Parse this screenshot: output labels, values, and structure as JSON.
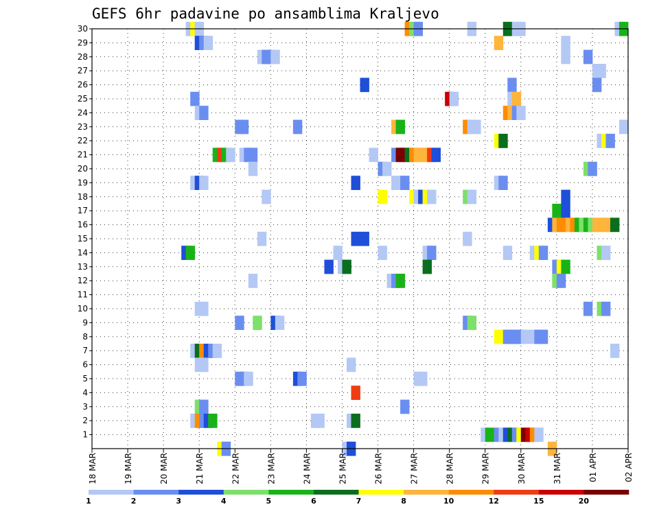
{
  "chart_data": {
    "type": "heatmap",
    "title": "GEFS 6hr padavine po ansamblima Kraljevo",
    "xlabel": "",
    "ylabel": "",
    "x_ticks": [
      "18 MAR",
      "19 MAR",
      "20 MAR",
      "21 MAR",
      "22 MAR",
      "23 MAR",
      "24 MAR",
      "25 MAR",
      "26 MAR",
      "27 MAR",
      "28 MAR",
      "29 MAR",
      "30 MAR",
      "31 MAR",
      "01 APR",
      "02 APR"
    ],
    "y_ticks": [
      "1",
      "2",
      "3",
      "4",
      "5",
      "6",
      "7",
      "8",
      "9",
      "10",
      "11",
      "12",
      "13",
      "14",
      "15",
      "16",
      "17",
      "18",
      "19",
      "20",
      "21",
      "22",
      "23",
      "24",
      "25",
      "26",
      "27",
      "28",
      "29",
      "30"
    ],
    "x_range_days": [
      0,
      15
    ],
    "x_reference_date": "18 MAR",
    "y_range": [
      0,
      30
    ],
    "grid": true,
    "colorbar": {
      "levels": [
        "1",
        "2",
        "3",
        "4",
        "5",
        "6",
        "7",
        "8",
        "10",
        "12",
        "15",
        "20"
      ],
      "colors": [
        "#b4c8f5",
        "#6a8ef0",
        "#1f4fd8",
        "#7ce06a",
        "#19b319",
        "#0a6e1e",
        "#ffff00",
        "#ffb43c",
        "#ff8c00",
        "#f03c14",
        "#c80000",
        "#780000"
      ],
      "level_index_for_class": [
        0,
        0,
        1,
        2,
        3,
        4,
        5,
        6,
        7,
        8,
        9,
        10,
        11
      ]
    },
    "cells": [
      [
        30,
        2.75,
        0
      ],
      [
        30,
        2.875,
        6
      ],
      [
        30,
        3.0,
        0
      ],
      [
        30,
        8.875,
        8
      ],
      [
        30,
        9.0,
        3
      ],
      [
        30,
        9.125,
        1
      ],
      [
        30,
        10.625,
        0
      ],
      [
        30,
        11.625,
        5
      ],
      [
        30,
        11.875,
        0
      ],
      [
        30,
        12.0,
        0
      ],
      [
        30,
        14.75,
        0
      ],
      [
        30,
        14.875,
        4
      ],
      [
        29,
        3.0,
        2
      ],
      [
        29,
        3.125,
        1
      ],
      [
        29,
        3.25,
        0
      ],
      [
        29,
        11.375,
        7
      ],
      [
        29,
        13.25,
        0
      ],
      [
        28,
        4.75,
        0
      ],
      [
        28,
        4.875,
        1
      ],
      [
        28,
        5.0,
        1
      ],
      [
        28,
        5.125,
        0
      ],
      [
        28,
        13.25,
        0
      ],
      [
        28,
        13.875,
        1
      ],
      [
        27,
        14.125,
        0
      ],
      [
        27,
        14.25,
        0
      ],
      [
        26,
        7.625,
        2
      ],
      [
        26,
        11.75,
        1
      ],
      [
        26,
        14.125,
        1
      ],
      [
        25,
        2.875,
        1
      ],
      [
        25,
        10.0,
        10
      ],
      [
        25,
        10.125,
        0
      ],
      [
        25,
        11.75,
        0
      ],
      [
        25,
        11.875,
        7
      ],
      [
        24,
        3.0,
        0
      ],
      [
        24,
        3.125,
        1
      ],
      [
        24,
        11.625,
        8
      ],
      [
        24,
        11.75,
        7
      ],
      [
        24,
        11.875,
        1
      ],
      [
        24,
        12.0,
        0
      ],
      [
        23,
        4.125,
        1
      ],
      [
        23,
        4.25,
        1
      ],
      [
        23,
        5.75,
        1
      ],
      [
        23,
        8.5,
        7
      ],
      [
        23,
        8.625,
        4
      ],
      [
        23,
        10.5,
        8
      ],
      [
        23,
        10.625,
        0
      ],
      [
        23,
        10.75,
        0
      ],
      [
        23,
        14.875,
        0
      ],
      [
        22,
        11.375,
        6
      ],
      [
        22,
        11.5,
        5
      ],
      [
        22,
        14.25,
        0
      ],
      [
        22,
        14.375,
        6
      ],
      [
        22,
        14.5,
        1
      ],
      [
        21,
        3.5,
        4
      ],
      [
        21,
        3.625,
        9
      ],
      [
        21,
        3.75,
        4
      ],
      [
        21,
        3.875,
        0
      ],
      [
        21,
        4.25,
        0
      ],
      [
        21,
        4.375,
        1
      ],
      [
        21,
        4.5,
        1
      ],
      [
        21,
        7.875,
        0
      ],
      [
        21,
        8.5,
        1
      ],
      [
        21,
        8.625,
        11
      ],
      [
        21,
        8.75,
        11
      ],
      [
        21,
        8.875,
        5
      ],
      [
        21,
        9.0,
        8
      ],
      [
        21,
        9.125,
        7
      ],
      [
        21,
        9.25,
        7
      ],
      [
        21,
        9.375,
        7
      ],
      [
        21,
        9.5,
        9
      ],
      [
        21,
        9.625,
        2
      ],
      [
        20,
        4.5,
        0
      ],
      [
        20,
        8.125,
        1
      ],
      [
        20,
        8.25,
        0
      ],
      [
        20,
        13.875,
        3
      ],
      [
        20,
        14.0,
        1
      ],
      [
        19,
        2.875,
        0
      ],
      [
        19,
        3.0,
        2
      ],
      [
        19,
        3.125,
        0
      ],
      [
        19,
        7.375,
        2
      ],
      [
        19,
        8.5,
        0
      ],
      [
        19,
        8.625,
        0
      ],
      [
        19,
        8.75,
        1
      ],
      [
        19,
        11.375,
        0
      ],
      [
        19,
        11.5,
        1
      ],
      [
        18,
        4.875,
        0
      ],
      [
        18,
        8.125,
        6
      ],
      [
        18,
        9.0,
        6
      ],
      [
        18,
        9.125,
        0
      ],
      [
        18,
        9.25,
        2
      ],
      [
        18,
        9.375,
        6
      ],
      [
        18,
        9.5,
        0
      ],
      [
        18,
        10.5,
        3
      ],
      [
        18,
        10.625,
        0
      ],
      [
        18,
        13.25,
        2
      ],
      [
        17,
        13.0,
        4
      ],
      [
        17,
        13.25,
        2
      ],
      [
        16,
        12.875,
        2
      ],
      [
        16,
        13.0,
        7
      ],
      [
        16,
        13.125,
        8
      ],
      [
        16,
        13.25,
        8
      ],
      [
        16,
        13.375,
        7
      ],
      [
        16,
        13.5,
        8
      ],
      [
        16,
        13.625,
        4
      ],
      [
        16,
        13.75,
        3
      ],
      [
        16,
        13.875,
        4
      ],
      [
        16,
        14.0,
        3
      ],
      [
        16,
        14.125,
        7
      ],
      [
        16,
        14.25,
        7
      ],
      [
        16,
        14.375,
        7
      ],
      [
        16,
        14.5,
        7
      ],
      [
        16,
        14.625,
        5
      ],
      [
        15,
        4.75,
        0
      ],
      [
        15,
        7.375,
        2
      ],
      [
        15,
        7.625,
        2
      ],
      [
        15,
        10.5,
        0
      ],
      [
        14,
        2.625,
        2
      ],
      [
        14,
        2.75,
        4
      ],
      [
        14,
        6.875,
        0
      ],
      [
        14,
        8.125,
        0
      ],
      [
        14,
        9.375,
        0
      ],
      [
        14,
        9.5,
        1
      ],
      [
        14,
        11.625,
        0
      ],
      [
        14,
        12.375,
        0
      ],
      [
        14,
        12.5,
        6
      ],
      [
        14,
        12.625,
        1
      ],
      [
        14,
        14.25,
        3
      ],
      [
        14,
        14.375,
        0
      ],
      [
        13,
        6.625,
        2
      ],
      [
        13,
        7.0,
        0
      ],
      [
        13,
        7.125,
        5
      ],
      [
        13,
        9.375,
        5
      ],
      [
        13,
        13.0,
        1
      ],
      [
        13,
        13.125,
        6
      ],
      [
        13,
        13.25,
        4
      ],
      [
        12,
        4.5,
        0
      ],
      [
        12,
        8.375,
        0
      ],
      [
        12,
        8.5,
        1
      ],
      [
        12,
        8.625,
        4
      ],
      [
        12,
        13.0,
        3
      ],
      [
        12,
        13.125,
        1
      ],
      [
        10,
        3.0,
        0
      ],
      [
        10,
        3.125,
        0
      ],
      [
        10,
        13.875,
        1
      ],
      [
        10,
        14.25,
        3
      ],
      [
        10,
        14.375,
        1
      ],
      [
        9,
        4.125,
        1
      ],
      [
        9,
        4.625,
        3
      ],
      [
        9,
        5.125,
        2
      ],
      [
        9,
        5.25,
        0
      ],
      [
        9,
        10.5,
        1
      ],
      [
        9,
        10.625,
        3
      ],
      [
        8,
        11.375,
        6
      ],
      [
        8,
        11.5,
        6
      ],
      [
        8,
        11.625,
        1
      ],
      [
        8,
        11.75,
        1
      ],
      [
        8,
        11.875,
        1
      ],
      [
        8,
        12.0,
        1
      ],
      [
        8,
        12.125,
        0
      ],
      [
        8,
        12.375,
        0
      ],
      [
        8,
        12.5,
        1
      ],
      [
        8,
        12.625,
        1
      ],
      [
        7,
        2.875,
        0
      ],
      [
        7,
        3.0,
        5
      ],
      [
        7,
        3.125,
        8
      ],
      [
        7,
        3.25,
        2
      ],
      [
        7,
        3.375,
        1
      ],
      [
        7,
        3.5,
        0
      ],
      [
        7,
        14.625,
        0
      ],
      [
        6,
        3.0,
        0
      ],
      [
        6,
        3.125,
        0
      ],
      [
        6,
        7.25,
        0
      ],
      [
        5,
        4.125,
        1
      ],
      [
        5,
        4.25,
        1
      ],
      [
        5,
        4.375,
        0
      ],
      [
        5,
        5.75,
        2
      ],
      [
        5,
        5.875,
        1
      ],
      [
        5,
        9.125,
        0
      ],
      [
        5,
        9.25,
        0
      ],
      [
        4,
        7.375,
        9
      ],
      [
        3,
        3.0,
        3
      ],
      [
        3,
        3.125,
        1
      ],
      [
        3,
        8.75,
        1
      ],
      [
        2,
        2.875,
        0
      ],
      [
        2,
        3.0,
        8
      ],
      [
        2,
        3.125,
        1
      ],
      [
        2,
        3.25,
        2
      ],
      [
        2,
        3.375,
        4
      ],
      [
        2,
        6.25,
        0
      ],
      [
        2,
        6.375,
        0
      ],
      [
        2,
        7.25,
        0
      ],
      [
        2,
        7.375,
        5
      ],
      [
        1,
        11.0,
        0
      ],
      [
        1,
        11.125,
        4
      ],
      [
        1,
        11.375,
        1
      ],
      [
        1,
        11.5,
        0
      ],
      [
        1,
        11.625,
        2
      ],
      [
        1,
        11.75,
        5
      ],
      [
        1,
        11.875,
        1
      ],
      [
        1,
        12.0,
        6
      ],
      [
        1,
        12.125,
        11
      ],
      [
        1,
        12.25,
        10
      ],
      [
        1,
        12.375,
        8
      ],
      [
        1,
        12.5,
        0
      ],
      [
        0,
        3.625,
        6
      ],
      [
        0,
        3.75,
        1
      ],
      [
        0,
        7.125,
        0
      ],
      [
        0,
        7.25,
        2
      ],
      [
        0,
        12.875,
        7
      ]
    ]
  }
}
